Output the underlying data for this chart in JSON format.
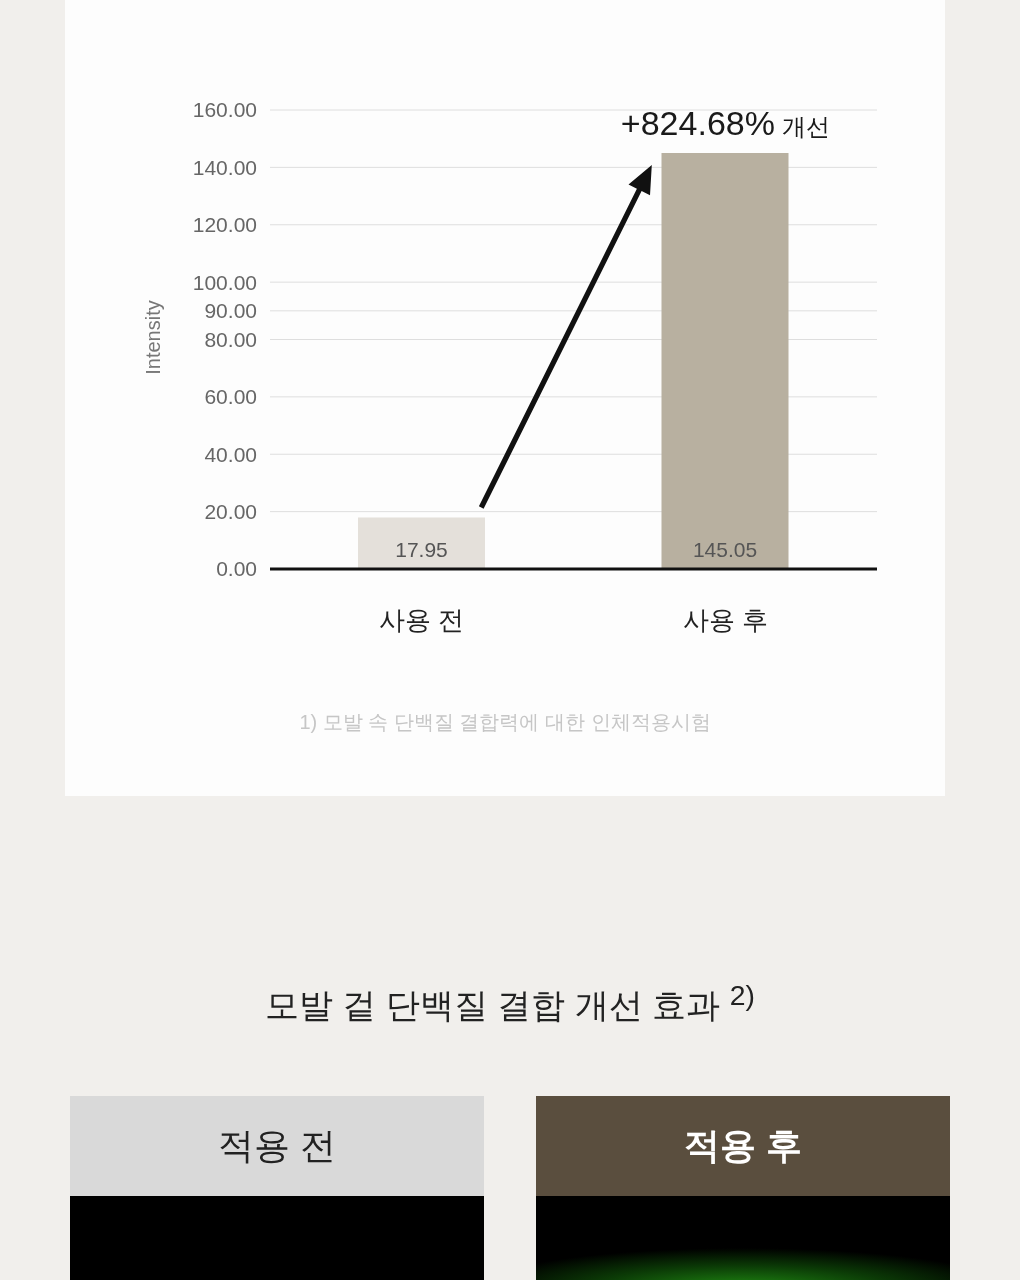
{
  "chart_data": [
    {
      "type": "bar",
      "ylabel": "Intensity",
      "categories": [
        "사용 전",
        "사용 후"
      ],
      "values": [
        17.95,
        145.05
      ],
      "colors": [
        "#e4e0da",
        "#b8b0a0"
      ],
      "ylim": [
        0,
        160
      ],
      "yticks": [
        {
          "value": 0,
          "label": "0.00"
        },
        {
          "value": 20,
          "label": "20.00"
        },
        {
          "value": 40,
          "label": "40.00"
        },
        {
          "value": 60,
          "label": "60.00"
        },
        {
          "value": 80,
          "label": "80.00"
        },
        {
          "value": 90,
          "label": "90.00"
        },
        {
          "value": 100,
          "label": "100.00"
        },
        {
          "value": 120,
          "label": "120.00"
        },
        {
          "value": 140,
          "label": "140.00"
        },
        {
          "value": 160,
          "label": "160.00"
        }
      ],
      "grid": "y",
      "data_labels": true,
      "annotations": [
        {
          "text": "+824.68% 개선",
          "x": "사용 후",
          "y": 145.05
        },
        "1) 모발 속 단백질 결합력에 대한 인체적용시험"
      ]
    },
    {
      "type": "other",
      "title": "모발 겉 단백질 결합 개선 효과 $^{2)}$",
      "annotations": [
        "적용 전",
        "적용 후"
      ]
    }
  ]
}
